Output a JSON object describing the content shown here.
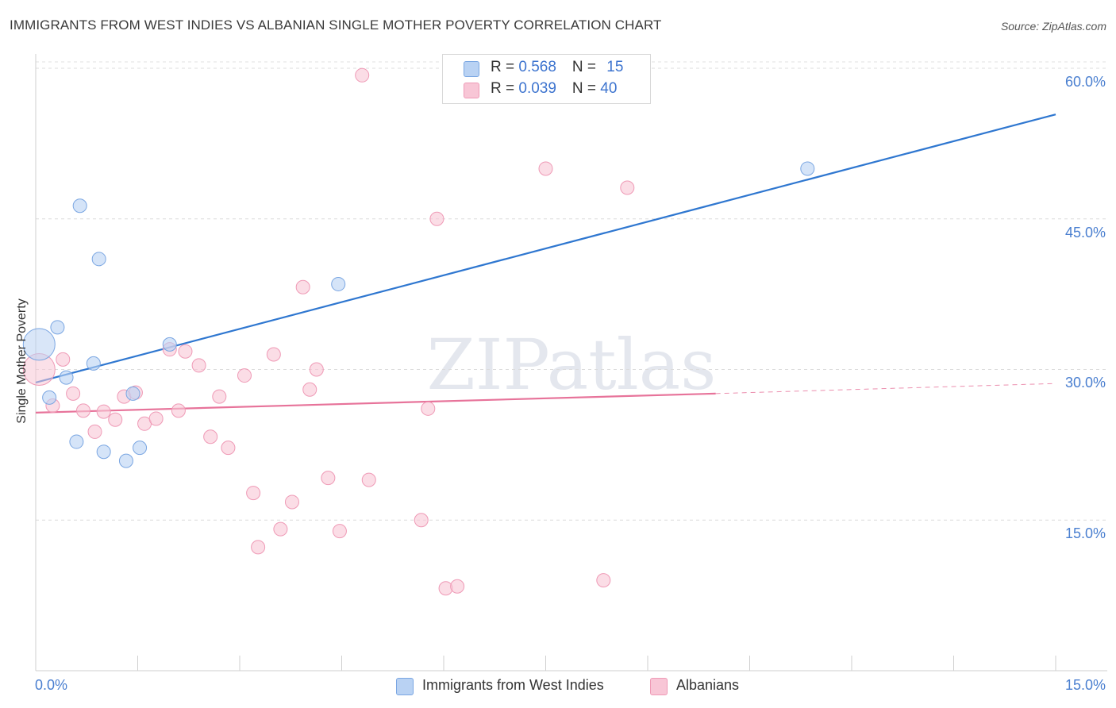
{
  "title": "IMMIGRANTS FROM WEST INDIES VS ALBANIAN SINGLE MOTHER POVERTY CORRELATION CHART",
  "source": "Source: ZipAtlas.com",
  "watermark": "ZIPatlas",
  "colors": {
    "blue_fill": "#b9d2f3",
    "blue_stroke": "#7aa6e2",
    "blue_line": "#2f77d0",
    "pink_fill": "#f8c6d6",
    "pink_stroke": "#ef9ab6",
    "pink_line": "#e7739a",
    "axis_label": "#4a7fd0"
  },
  "legend": {
    "rows": [
      {
        "r_label": "R = ",
        "r_value": "0.568",
        "n_label": "N = ",
        "n_value": "15"
      },
      {
        "r_label": "R = ",
        "r_value": "0.039",
        "n_label": "N = ",
        "n_value": "40"
      }
    ]
  },
  "chart_data": {
    "type": "scatter",
    "title": "IMMIGRANTS FROM WEST INDIES VS ALBANIAN SINGLE MOTHER POVERTY CORRELATION CHART",
    "xlabel": "",
    "ylabel": "Single Mother Poverty",
    "xlim": [
      0,
      15
    ],
    "ylim": [
      0,
      63
    ],
    "x_tick_labels": [
      "0.0%",
      "15.0%"
    ],
    "y_ticks": [
      15,
      30,
      45,
      60
    ],
    "y_tick_labels": [
      "15.0%",
      "30.0%",
      "45.0%",
      "60.0%"
    ],
    "grid": true,
    "series": [
      {
        "name": "Immigrants from West Indies",
        "r": 0.568,
        "n": 15,
        "points": [
          {
            "x": 0.05,
            "y": 32.5,
            "big": true
          },
          {
            "x": 0.2,
            "y": 27.2
          },
          {
            "x": 0.32,
            "y": 34.2
          },
          {
            "x": 0.45,
            "y": 29.2
          },
          {
            "x": 0.6,
            "y": 22.8
          },
          {
            "x": 0.65,
            "y": 46.3
          },
          {
            "x": 0.85,
            "y": 30.6
          },
          {
            "x": 0.93,
            "y": 41.0
          },
          {
            "x": 1.0,
            "y": 21.8
          },
          {
            "x": 1.33,
            "y": 20.9
          },
          {
            "x": 1.43,
            "y": 27.6
          },
          {
            "x": 1.53,
            "y": 22.2
          },
          {
            "x": 1.97,
            "y": 32.5
          },
          {
            "x": 4.45,
            "y": 38.5
          },
          {
            "x": 11.35,
            "y": 50.0
          }
        ],
        "trend": {
          "x0": 0.0,
          "y0": 28.7,
          "x1": 15.0,
          "y1": 55.4
        }
      },
      {
        "name": "Albanians",
        "r": 0.039,
        "n": 40,
        "points": [
          {
            "x": 0.05,
            "y": 30.0,
            "big": true
          },
          {
            "x": 0.25,
            "y": 26.4
          },
          {
            "x": 0.4,
            "y": 31.0
          },
          {
            "x": 0.55,
            "y": 27.6
          },
          {
            "x": 0.7,
            "y": 25.9
          },
          {
            "x": 0.87,
            "y": 23.8
          },
          {
            "x": 1.0,
            "y": 25.8
          },
          {
            "x": 1.17,
            "y": 25.0
          },
          {
            "x": 1.3,
            "y": 27.3
          },
          {
            "x": 1.47,
            "y": 27.7
          },
          {
            "x": 1.6,
            "y": 24.6
          },
          {
            "x": 1.77,
            "y": 25.1
          },
          {
            "x": 1.97,
            "y": 32.0
          },
          {
            "x": 2.1,
            "y": 25.9
          },
          {
            "x": 2.2,
            "y": 31.8
          },
          {
            "x": 2.4,
            "y": 30.4
          },
          {
            "x": 2.57,
            "y": 23.3
          },
          {
            "x": 2.7,
            "y": 27.3
          },
          {
            "x": 2.83,
            "y": 22.2
          },
          {
            "x": 3.07,
            "y": 29.4
          },
          {
            "x": 3.2,
            "y": 17.7
          },
          {
            "x": 3.27,
            "y": 12.3
          },
          {
            "x": 3.5,
            "y": 31.5
          },
          {
            "x": 3.6,
            "y": 14.1
          },
          {
            "x": 3.77,
            "y": 16.8
          },
          {
            "x": 3.93,
            "y": 38.2
          },
          {
            "x": 4.03,
            "y": 28.0
          },
          {
            "x": 4.13,
            "y": 30.0
          },
          {
            "x": 4.3,
            "y": 19.2
          },
          {
            "x": 4.47,
            "y": 13.9
          },
          {
            "x": 4.8,
            "y": 59.3
          },
          {
            "x": 4.9,
            "y": 19.0
          },
          {
            "x": 5.67,
            "y": 15.0
          },
          {
            "x": 5.77,
            "y": 26.1
          },
          {
            "x": 5.9,
            "y": 45.0
          },
          {
            "x": 6.03,
            "y": 8.2
          },
          {
            "x": 6.2,
            "y": 8.4
          },
          {
            "x": 7.5,
            "y": 50.0
          },
          {
            "x": 8.35,
            "y": 9.0
          },
          {
            "x": 8.7,
            "y": 48.1
          }
        ],
        "trend": {
          "x0": 0.0,
          "y0": 25.7,
          "x1": 10.0,
          "y1": 27.6,
          "x_dash_end": 15.0,
          "y_dash_end": 28.6
        }
      }
    ]
  }
}
